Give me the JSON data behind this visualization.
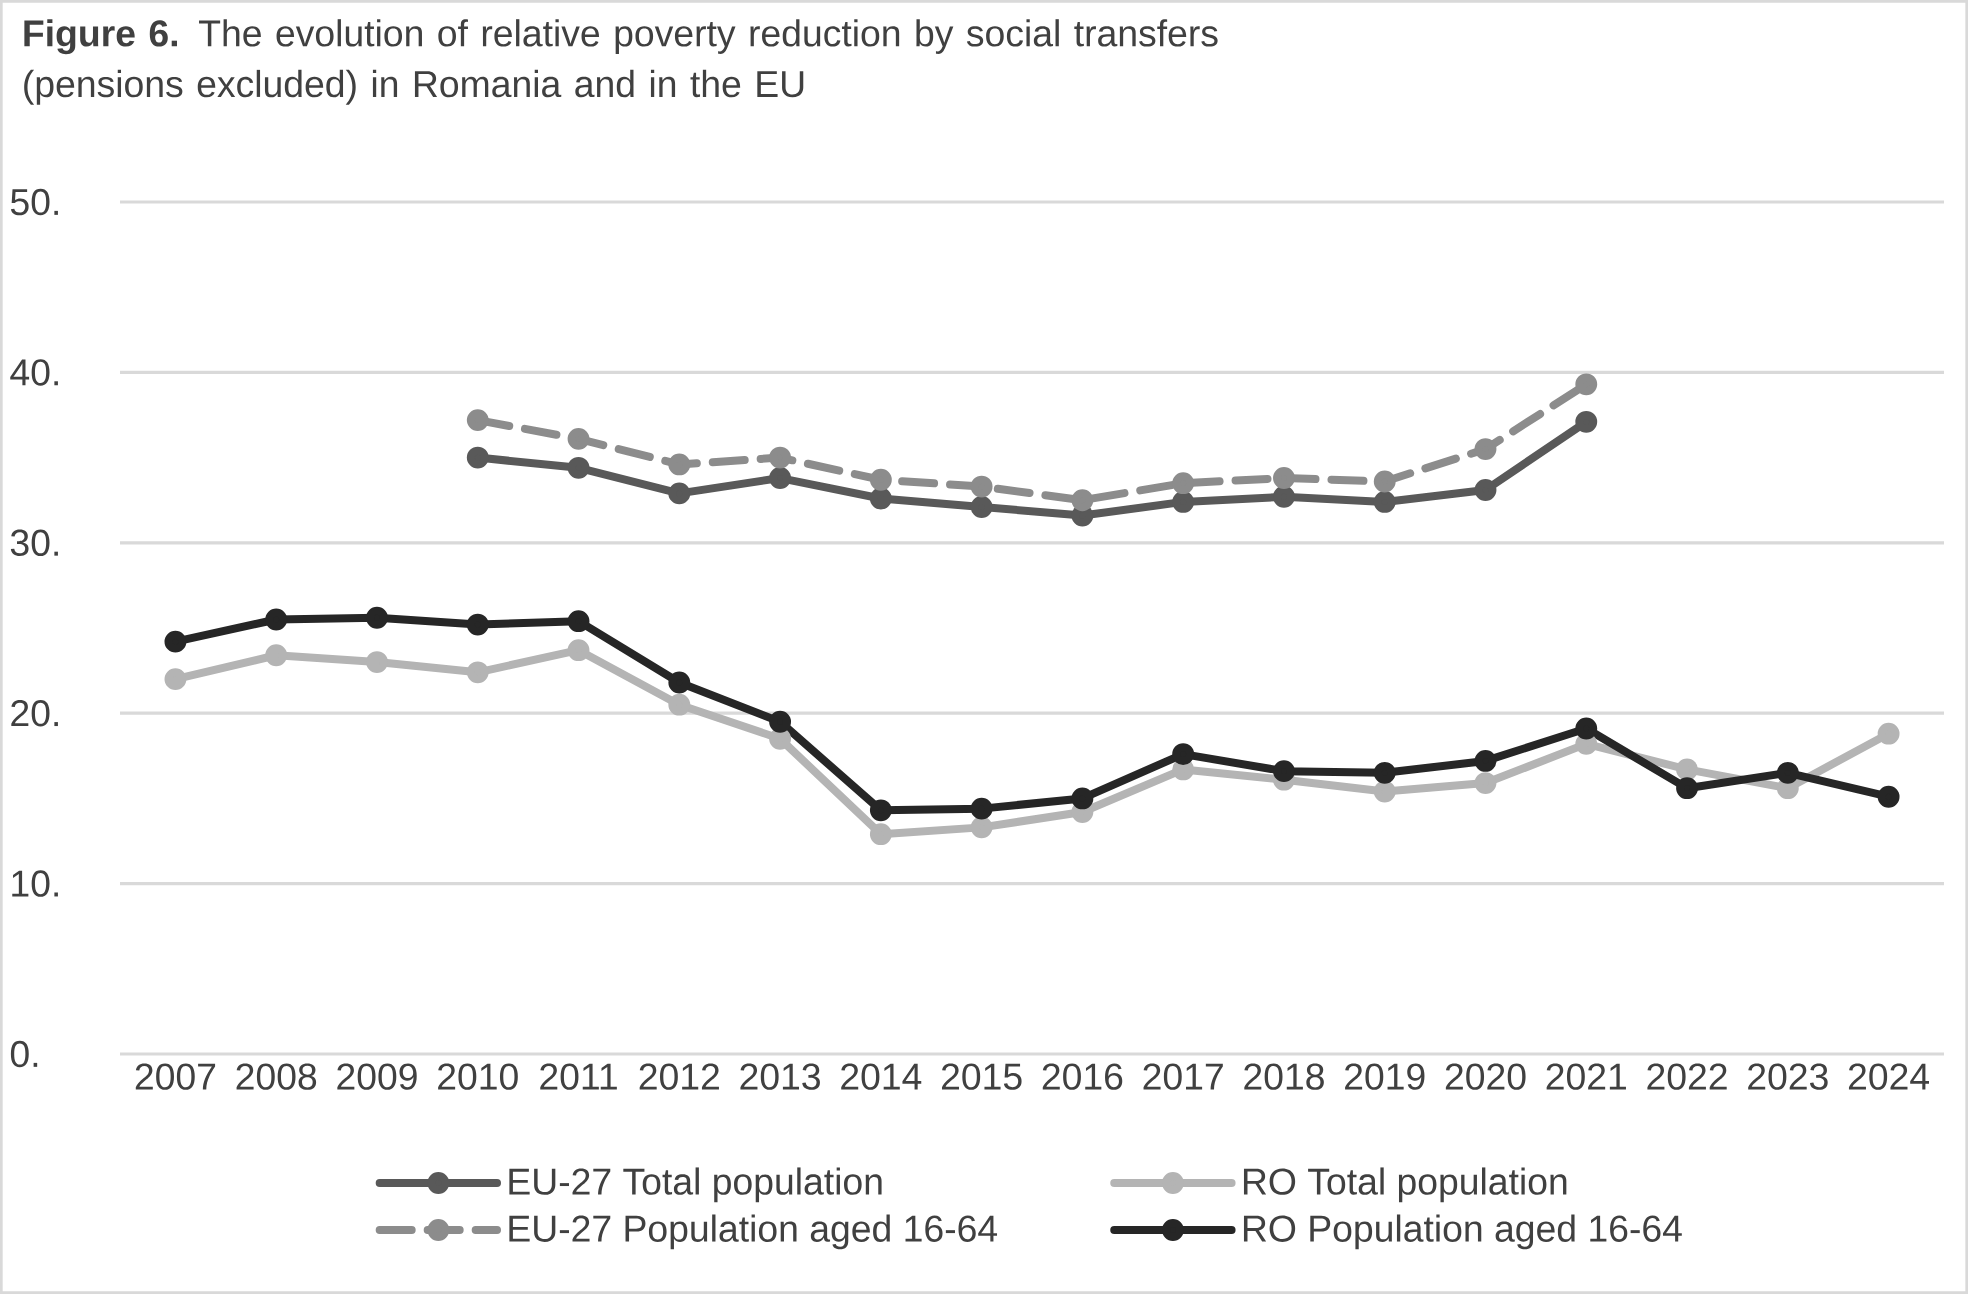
{
  "chart_data": {
    "type": "line",
    "title": "**Figure 6.** The evolution of relative poverty reduction by social transfers (pensions excluded) in Romania and in the EU",
    "categories": [
      "2007",
      "2008",
      "2009",
      "2010",
      "2011",
      "2012",
      "2013",
      "2014",
      "2015",
      "2016",
      "2017",
      "2018",
      "2019",
      "2020",
      "2021",
      "2022",
      "2023",
      "2024"
    ],
    "series": [
      {
        "name": "EU-27 Total population",
        "color": "#595959",
        "line_style": "solid",
        "values": [
          null,
          null,
          null,
          35.0,
          34.4,
          32.9,
          33.8,
          32.6,
          32.1,
          31.6,
          32.4,
          32.7,
          32.4,
          33.1,
          37.1,
          null,
          null,
          null
        ]
      },
      {
        "name": "RO Total population",
        "color": "#b4b4b4",
        "line_style": "solid",
        "values": [
          22.0,
          23.4,
          23.0,
          22.4,
          23.7,
          20.5,
          18.5,
          12.9,
          13.3,
          14.2,
          16.7,
          16.1,
          15.4,
          15.9,
          18.2,
          16.7,
          15.6,
          18.8
        ]
      },
      {
        "name": "EU-27 Population aged 16-64",
        "color": "#8c8c8c",
        "line_style": "dashed",
        "values": [
          null,
          null,
          null,
          37.2,
          36.1,
          34.6,
          35.0,
          33.7,
          33.3,
          32.5,
          33.5,
          33.8,
          33.6,
          35.5,
          39.3,
          null,
          null,
          null
        ]
      },
      {
        "name": "RO Population aged 16-64",
        "color": "#262626",
        "line_style": "solid",
        "values": [
          24.2,
          25.5,
          25.6,
          25.2,
          25.4,
          21.8,
          19.5,
          14.3,
          14.4,
          15.0,
          17.6,
          16.6,
          16.5,
          17.2,
          19.1,
          15.6,
          16.5,
          15.1
        ]
      }
    ],
    "ylim": [
      0,
      50
    ],
    "yticks": [
      {
        "value": 0,
        "label": "0."
      },
      {
        "value": 10,
        "label": "10."
      },
      {
        "value": 20,
        "label": "20."
      },
      {
        "value": 30,
        "label": "30."
      },
      {
        "value": 40,
        "label": "40."
      },
      {
        "value": 50,
        "label": "50."
      }
    ],
    "grid": "y",
    "legend": "bottom",
    "marker": "circle"
  }
}
